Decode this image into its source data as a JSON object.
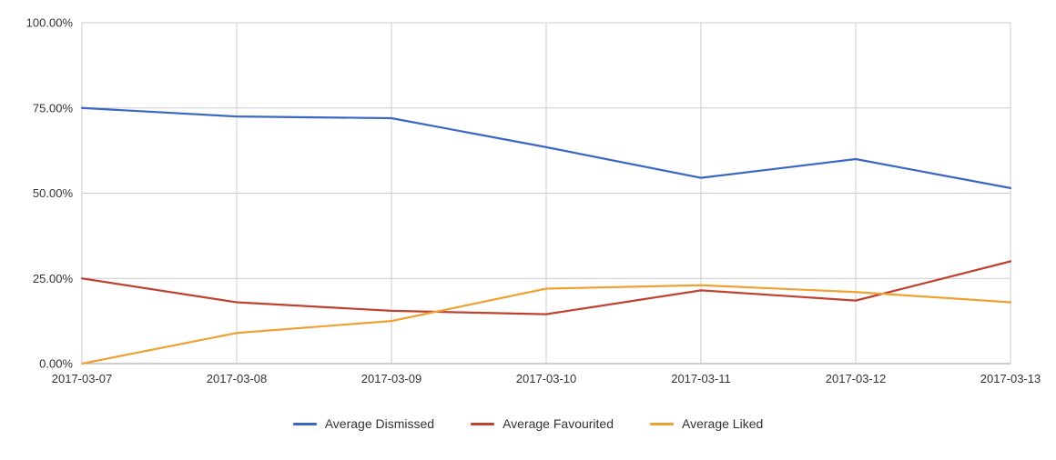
{
  "chart_data": {
    "type": "line",
    "title": "",
    "xlabel": "",
    "ylabel": "",
    "x": [
      "2017-03-07",
      "2017-03-08",
      "2017-03-09",
      "2017-03-10",
      "2017-03-11",
      "2017-03-12",
      "2017-03-13"
    ],
    "series": [
      {
        "name": "Average Dismissed",
        "color": "#3a66c4",
        "values": [
          75,
          72.5,
          72,
          63.5,
          54.5,
          60,
          51.5
        ]
      },
      {
        "name": "Average Favourited",
        "color": "#bf4130",
        "values": [
          25,
          18,
          15.5,
          14.5,
          21.5,
          18.5,
          30
        ]
      },
      {
        "name": "Average Liked",
        "color": "#f0a132",
        "values": [
          0,
          9,
          12.5,
          22,
          23,
          21,
          18
        ]
      }
    ],
    "ylim": [
      0,
      100
    ],
    "yticks": [
      0,
      25,
      50,
      75,
      100
    ],
    "ytick_labels": [
      "0.00%",
      "25.00%",
      "50.00%",
      "75.00%",
      "100.00%"
    ],
    "grid": true,
    "legend_position": "bottom",
    "colors": {
      "gridline": "#cccccc",
      "baseline": "#9e9e9e",
      "axis_text": "#333333"
    }
  }
}
